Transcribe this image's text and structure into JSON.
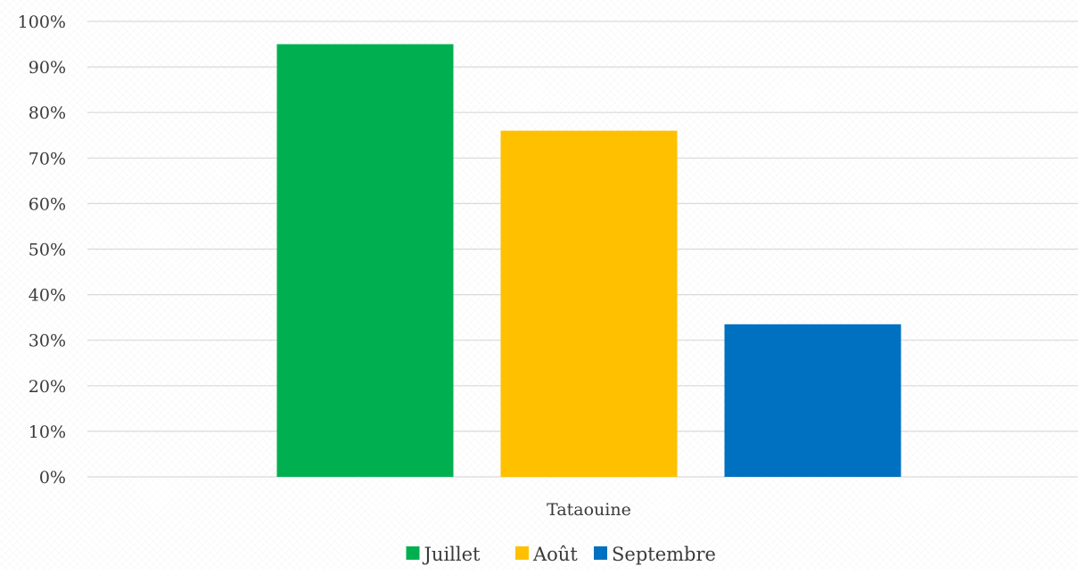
{
  "chart_data": {
    "type": "bar",
    "categories": [
      "Tataouine"
    ],
    "series": [
      {
        "name": "Juillet",
        "values": [
          95
        ],
        "color": "#00B050"
      },
      {
        "name": "Août",
        "values": [
          76
        ],
        "color": "#FFC000"
      },
      {
        "name": "Septembre",
        "values": [
          33.5
        ],
        "color": "#0070C0"
      }
    ],
    "y_ticks": [
      "0%",
      "10%",
      "20%",
      "30%",
      "40%",
      "50%",
      "60%",
      "70%",
      "80%",
      "90%",
      "100%"
    ],
    "ylim": [
      0,
      100
    ],
    "y_unit": "percent",
    "grid": true,
    "gridline_color": "#d9d9d9",
    "legend_position": "bottom",
    "title": "",
    "xlabel": "",
    "ylabel": ""
  }
}
